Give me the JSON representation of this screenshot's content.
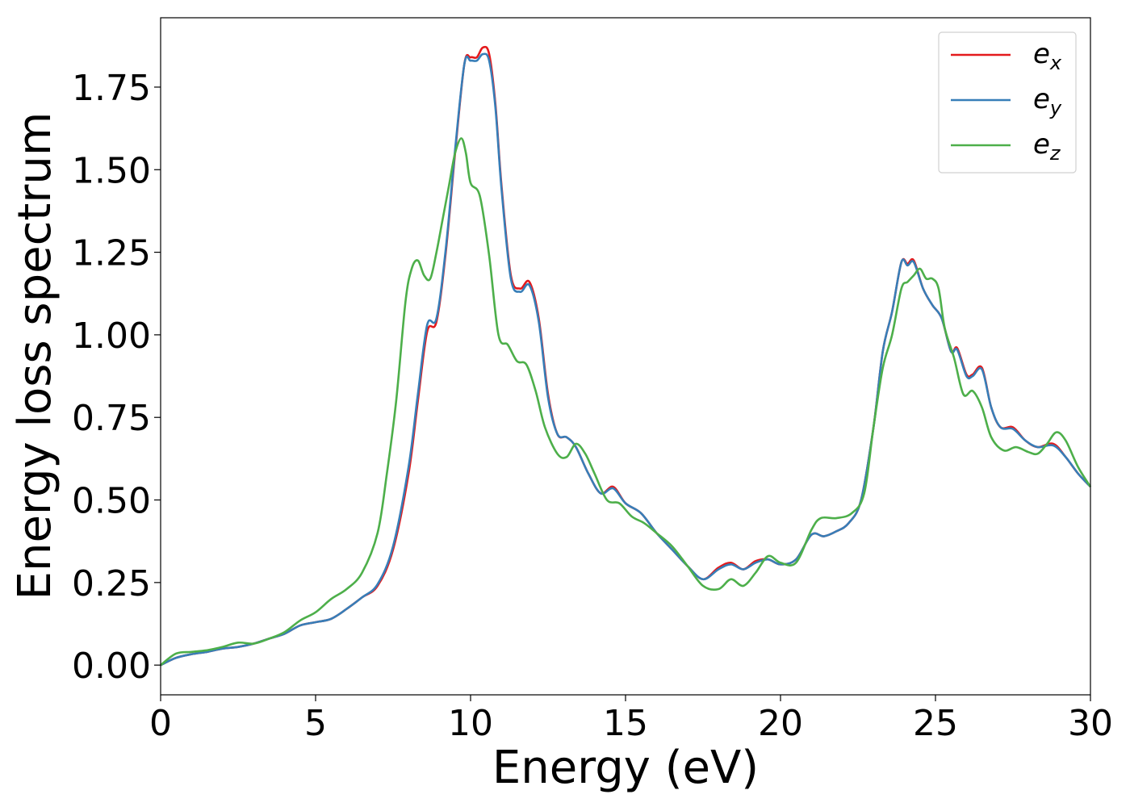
{
  "chart_data": {
    "type": "line",
    "xlabel": "Energy (eV)",
    "ylabel": "Energy loss spectrum",
    "xlim": [
      0,
      30
    ],
    "ylim": [
      -0.09,
      1.96
    ],
    "xticks": [
      0,
      5,
      10,
      15,
      20,
      25,
      30
    ],
    "xtick_labels": [
      "0",
      "5",
      "10",
      "15",
      "20",
      "25",
      "30"
    ],
    "yticks": [
      0.0,
      0.25,
      0.5,
      0.75,
      1.0,
      1.25,
      1.5,
      1.75
    ],
    "ytick_labels": [
      "0.00",
      "0.25",
      "0.50",
      "0.75",
      "1.00",
      "1.25",
      "1.50",
      "1.75"
    ],
    "grid": false,
    "legend_position": "top-right",
    "series": [
      {
        "name": "e_x",
        "legend_base": "e",
        "legend_sub": "x",
        "color": "#e41a1c",
        "x": [
          0,
          0.5,
          1.0,
          1.5,
          2.0,
          2.5,
          3.0,
          3.5,
          4.0,
          4.5,
          5.0,
          5.5,
          6.0,
          6.5,
          7.0,
          7.5,
          8.0,
          8.3,
          8.6,
          8.9,
          9.2,
          9.5,
          9.8,
          10.0,
          10.2,
          10.4,
          10.6,
          10.8,
          11.0,
          11.3,
          11.6,
          11.9,
          12.2,
          12.5,
          12.8,
          13.1,
          13.4,
          13.8,
          14.2,
          14.6,
          15.0,
          15.5,
          16.0,
          16.5,
          17.0,
          17.5,
          18.0,
          18.4,
          18.8,
          19.2,
          19.6,
          20.0,
          20.5,
          21.0,
          21.4,
          21.8,
          22.2,
          22.6,
          23.0,
          23.3,
          23.6,
          23.9,
          24.1,
          24.3,
          24.6,
          24.9,
          25.2,
          25.5,
          25.7,
          26.0,
          26.2,
          26.5,
          26.8,
          27.1,
          27.5,
          27.9,
          28.3,
          28.8,
          29.2,
          29.6,
          30.0
        ],
        "y": [
          0.0,
          0.022,
          0.033,
          0.04,
          0.05,
          0.055,
          0.065,
          0.08,
          0.095,
          0.12,
          0.13,
          0.14,
          0.17,
          0.205,
          0.24,
          0.35,
          0.58,
          0.8,
          1.01,
          1.04,
          1.25,
          1.55,
          1.82,
          1.84,
          1.84,
          1.87,
          1.85,
          1.7,
          1.45,
          1.18,
          1.14,
          1.16,
          1.05,
          0.82,
          0.7,
          0.69,
          0.66,
          0.58,
          0.52,
          0.54,
          0.49,
          0.46,
          0.4,
          0.35,
          0.3,
          0.26,
          0.295,
          0.31,
          0.29,
          0.315,
          0.32,
          0.305,
          0.32,
          0.395,
          0.39,
          0.405,
          0.43,
          0.5,
          0.72,
          0.95,
          1.07,
          1.22,
          1.215,
          1.225,
          1.14,
          1.09,
          1.05,
          0.95,
          0.96,
          0.88,
          0.88,
          0.9,
          0.78,
          0.72,
          0.72,
          0.68,
          0.66,
          0.67,
          0.63,
          0.58,
          0.54
        ]
      },
      {
        "name": "e_y",
        "legend_base": "e",
        "legend_sub": "y",
        "color": "#377eb8",
        "x": [
          0,
          0.5,
          1.0,
          1.5,
          2.0,
          2.5,
          3.0,
          3.5,
          4.0,
          4.5,
          5.0,
          5.5,
          6.0,
          6.5,
          7.0,
          7.5,
          8.0,
          8.3,
          8.6,
          8.9,
          9.2,
          9.5,
          9.8,
          10.0,
          10.2,
          10.4,
          10.6,
          10.8,
          11.0,
          11.3,
          11.6,
          11.9,
          12.2,
          12.5,
          12.8,
          13.1,
          13.4,
          13.8,
          14.2,
          14.6,
          15.0,
          15.5,
          16.0,
          16.5,
          17.0,
          17.5,
          18.0,
          18.4,
          18.8,
          19.2,
          19.6,
          20.0,
          20.5,
          21.0,
          21.4,
          21.8,
          22.2,
          22.6,
          23.0,
          23.3,
          23.6,
          23.9,
          24.1,
          24.3,
          24.6,
          24.9,
          25.2,
          25.5,
          25.7,
          26.0,
          26.2,
          26.5,
          26.8,
          27.1,
          27.5,
          27.9,
          28.3,
          28.8,
          29.2,
          29.6,
          30.0
        ],
        "y": [
          0.0,
          0.022,
          0.033,
          0.04,
          0.05,
          0.055,
          0.065,
          0.08,
          0.095,
          0.12,
          0.13,
          0.14,
          0.17,
          0.205,
          0.245,
          0.36,
          0.6,
          0.82,
          1.03,
          1.05,
          1.26,
          1.56,
          1.82,
          1.83,
          1.83,
          1.85,
          1.83,
          1.69,
          1.44,
          1.17,
          1.13,
          1.15,
          1.04,
          0.81,
          0.7,
          0.69,
          0.66,
          0.58,
          0.52,
          0.535,
          0.49,
          0.46,
          0.4,
          0.35,
          0.3,
          0.26,
          0.29,
          0.305,
          0.29,
          0.31,
          0.32,
          0.305,
          0.32,
          0.395,
          0.39,
          0.405,
          0.43,
          0.5,
          0.72,
          0.95,
          1.07,
          1.22,
          1.21,
          1.22,
          1.14,
          1.09,
          1.05,
          0.95,
          0.955,
          0.875,
          0.875,
          0.895,
          0.78,
          0.72,
          0.715,
          0.68,
          0.66,
          0.665,
          0.63,
          0.58,
          0.54
        ]
      },
      {
        "name": "e_z",
        "legend_base": "e",
        "legend_sub": "z",
        "color": "#4daf4a",
        "x": [
          0,
          0.5,
          1.0,
          1.5,
          2.0,
          2.5,
          3.0,
          3.5,
          4.0,
          4.5,
          5.0,
          5.5,
          6.0,
          6.5,
          7.0,
          7.3,
          7.6,
          7.9,
          8.1,
          8.3,
          8.5,
          8.7,
          8.9,
          9.1,
          9.3,
          9.5,
          9.7,
          9.85,
          10.0,
          10.3,
          10.6,
          10.9,
          11.2,
          11.5,
          11.8,
          12.1,
          12.4,
          12.8,
          13.1,
          13.4,
          13.7,
          14.0,
          14.4,
          14.8,
          15.2,
          15.6,
          16.0,
          16.5,
          17.0,
          17.5,
          18.0,
          18.4,
          18.8,
          19.2,
          19.6,
          20.0,
          20.5,
          21.0,
          21.3,
          21.8,
          22.3,
          22.7,
          23.0,
          23.3,
          23.6,
          23.9,
          24.1,
          24.3,
          24.5,
          24.7,
          24.9,
          25.1,
          25.3,
          25.6,
          25.9,
          26.2,
          26.5,
          26.8,
          27.2,
          27.6,
          28.0,
          28.3,
          28.6,
          28.9,
          29.2,
          29.6,
          30.0
        ],
        "y": [
          0.0,
          0.035,
          0.04,
          0.045,
          0.055,
          0.068,
          0.065,
          0.08,
          0.1,
          0.135,
          0.16,
          0.2,
          0.23,
          0.28,
          0.4,
          0.58,
          0.8,
          1.1,
          1.2,
          1.225,
          1.18,
          1.17,
          1.25,
          1.35,
          1.45,
          1.55,
          1.595,
          1.55,
          1.46,
          1.42,
          1.24,
          1.0,
          0.97,
          0.92,
          0.91,
          0.83,
          0.72,
          0.64,
          0.63,
          0.67,
          0.64,
          0.58,
          0.5,
          0.49,
          0.45,
          0.43,
          0.4,
          0.36,
          0.3,
          0.24,
          0.23,
          0.26,
          0.24,
          0.28,
          0.33,
          0.31,
          0.31,
          0.41,
          0.445,
          0.445,
          0.46,
          0.52,
          0.72,
          0.9,
          1.0,
          1.14,
          1.16,
          1.18,
          1.2,
          1.17,
          1.17,
          1.14,
          1.02,
          0.93,
          0.82,
          0.83,
          0.78,
          0.69,
          0.65,
          0.66,
          0.645,
          0.64,
          0.67,
          0.705,
          0.68,
          0.6,
          0.54
        ]
      }
    ]
  }
}
